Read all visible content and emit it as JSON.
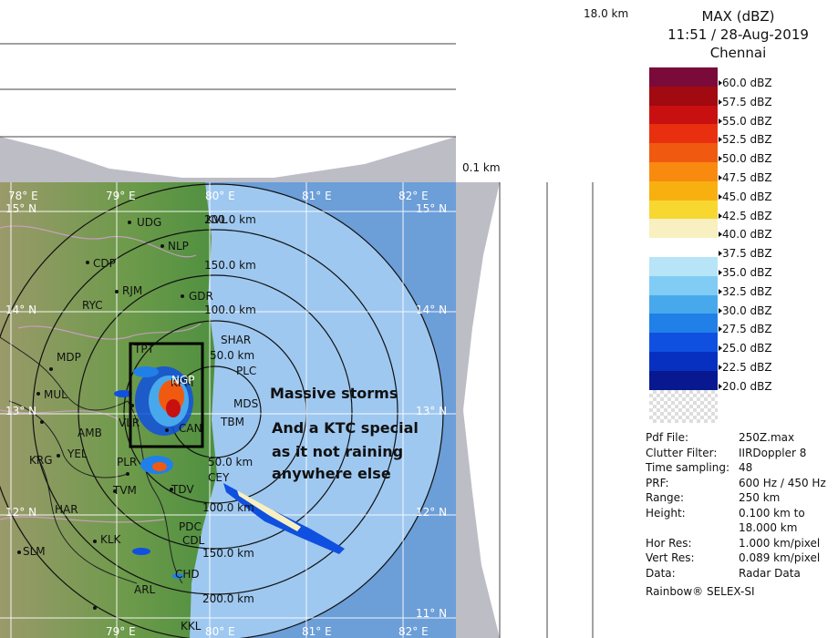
{
  "header": {
    "height_top": "18.0 km",
    "height_bottom": "0.1 km"
  },
  "legend": {
    "title": "MAX (dBZ)",
    "time": "11:51 / 28-Aug-2019",
    "station": "Chennai",
    "scale": [
      {
        "label": "60.0 dBZ",
        "color": "#7a0a3a"
      },
      {
        "label": "57.5 dBZ",
        "color": "#a00a10"
      },
      {
        "label": "55.0 dBZ",
        "color": "#c81010"
      },
      {
        "label": "52.5 dBZ",
        "color": "#e83010"
      },
      {
        "label": "50.0 dBZ",
        "color": "#f05a10"
      },
      {
        "label": "47.5 dBZ",
        "color": "#f88a10"
      },
      {
        "label": "45.0 dBZ",
        "color": "#f8b010"
      },
      {
        "label": "42.5 dBZ",
        "color": "#f8d830"
      },
      {
        "label": "40.0 dBZ",
        "color": "#f8f0c0"
      },
      {
        "label": "37.5 dBZ",
        "color": "#ffffff"
      },
      {
        "label": "35.0 dBZ",
        "color": "#b8e4f8"
      },
      {
        "label": "32.5 dBZ",
        "color": "#80ccf4"
      },
      {
        "label": "30.0 dBZ",
        "color": "#48a8ec"
      },
      {
        "label": "27.5 dBZ",
        "color": "#2080e8"
      },
      {
        "label": "25.0 dBZ",
        "color": "#1050e0"
      },
      {
        "label": "22.5 dBZ",
        "color": "#0830c0"
      },
      {
        "label": "20.0 dBZ",
        "color": "#081890"
      }
    ]
  },
  "info": [
    {
      "key": "Pdf File:",
      "value": "250Z.max"
    },
    {
      "key": "Clutter Filter:",
      "value": "IIRDoppler 8"
    },
    {
      "key": "Time sampling:",
      "value": "48"
    },
    {
      "key": "PRF:",
      "value": "600 Hz / 450 Hz"
    },
    {
      "key": "Range:",
      "value": "250 km"
    },
    {
      "key": "Height:",
      "value": "0.100 km to"
    },
    {
      "key": "",
      "value": "18.000 km"
    },
    {
      "key": "Hor Res:",
      "value": "1.000 km/pixel"
    },
    {
      "key": "Vert Res:",
      "value": "0.089 km/pixel"
    },
    {
      "key": "Data:",
      "value": "Radar Data"
    }
  ],
  "footer": "Rainbow® SELEX-SI",
  "map": {
    "lon_labels": [
      "78° E",
      "79° E",
      "80° E",
      "81° E",
      "82° E"
    ],
    "lat_labels": [
      "15° N",
      "14° N",
      "13° N",
      "12° N",
      "11° N"
    ],
    "range_rings": [
      "200.0 km",
      "150.0 km",
      "100.0 km",
      "50.0 km",
      "50.0 km",
      "100.0 km",
      "150.0 km",
      "200.0 km"
    ],
    "cities": [
      "UDG",
      "KVL",
      "NLP",
      "CDP",
      "RJM",
      "GDR",
      "RYC",
      "SHAR",
      "PLC",
      "MDP",
      "TPT",
      "MDS",
      "MUL",
      "TBM",
      "AMB",
      "VLR",
      "KPM",
      "CAN",
      "YEL",
      "KRG",
      "PLR",
      "CEY",
      "TVM",
      "TDV",
      "HAR",
      "PDC",
      "KLK",
      "CDL",
      "SLM",
      "CHD",
      "ARL",
      "KKL",
      "NGP"
    ]
  },
  "annotation": {
    "line1": "Massive storms",
    "line2": "And a KTC special",
    "line3": "as it not raining",
    "line4": "anywhere else"
  }
}
